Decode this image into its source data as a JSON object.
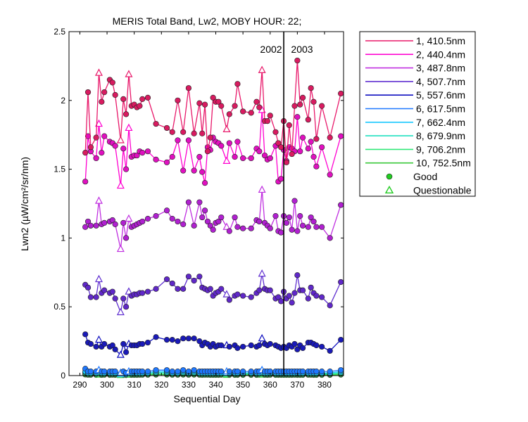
{
  "chart_data": {
    "type": "line",
    "title": "MERIS Total Band, Lw2, MOBY HOUR: 22;",
    "xlabel": "Sequential Day",
    "ylabel": "Lwn2 (µW/cm²/sr/nm)",
    "xlim": [
      286,
      387
    ],
    "ylim": [
      0,
      2.5
    ],
    "xticks": [
      290,
      300,
      310,
      320,
      330,
      340,
      350,
      360,
      370,
      380
    ],
    "yticks": [
      0,
      0.5,
      1,
      1.5,
      2,
      2.5
    ],
    "ytick_labels": [
      "0",
      "0.5",
      "1",
      "1.5",
      "2",
      "2.5"
    ],
    "year_divider": {
      "x": 365,
      "left_label": "2002",
      "right_label": "2003"
    },
    "x": [
      292,
      293,
      294,
      296,
      297,
      298,
      299,
      301,
      302,
      303,
      305,
      306,
      307,
      308,
      309,
      310,
      311,
      312,
      313,
      315,
      318,
      322,
      324,
      326,
      328,
      330,
      332,
      334,
      335,
      336,
      337,
      338,
      339,
      340,
      341,
      342,
      344,
      345,
      347,
      348,
      350,
      353,
      355,
      356,
      357,
      358,
      359,
      360,
      362,
      363,
      364,
      365,
      366,
      367,
      368,
      369,
      370,
      371,
      372,
      374,
      375,
      376,
      377,
      379,
      382,
      386
    ],
    "questionable_x": [
      297,
      305,
      308,
      344,
      357
    ],
    "series": [
      {
        "name": "1, 410.5nm",
        "color": "#e8186a",
        "marker_fill": "#d81b60",
        "values": [
          1.62,
          2.06,
          1.66,
          1.73,
          2.2,
          1.99,
          2.06,
          2.15,
          2.13,
          2.04,
          1.71,
          2.01,
          1.9,
          2.19,
          1.96,
          1.97,
          1.95,
          1.96,
          2.01,
          2.02,
          1.83,
          1.8,
          1.77,
          2.0,
          1.77,
          2.09,
          1.76,
          1.98,
          1.76,
          1.97,
          1.63,
          1.73,
          2.02,
          1.99,
          1.99,
          1.96,
          1.79,
          1.9,
          1.96,
          2.12,
          1.92,
          1.91,
          1.99,
          1.95,
          2.22,
          1.85,
          1.85,
          1.89,
          1.77,
          1.69,
          1.66,
          1.85,
          1.55,
          1.82,
          1.61,
          1.96,
          2.29,
          1.97,
          2.02,
          1.86,
          2.09,
          1.99,
          1.72,
          1.96,
          1.73,
          2.05
        ]
      },
      {
        "name": "2, 440.4nm",
        "color": "#ff00d0",
        "marker_fill": "#e010c0",
        "values": [
          1.41,
          1.74,
          1.63,
          1.58,
          1.83,
          1.62,
          1.74,
          1.7,
          1.69,
          1.67,
          1.38,
          1.65,
          1.5,
          1.8,
          1.59,
          1.6,
          1.6,
          1.63,
          1.62,
          1.63,
          1.57,
          1.55,
          1.59,
          1.71,
          1.49,
          1.71,
          1.49,
          1.59,
          1.48,
          1.4,
          1.66,
          1.64,
          1.73,
          1.7,
          1.69,
          1.67,
          1.56,
          1.69,
          1.59,
          1.7,
          1.58,
          1.58,
          1.65,
          1.63,
          1.93,
          1.6,
          1.57,
          1.58,
          1.67,
          1.41,
          1.43,
          1.64,
          1.56,
          1.66,
          1.65,
          1.63,
          1.88,
          1.63,
          1.73,
          1.65,
          1.7,
          1.59,
          1.52,
          1.66,
          1.46,
          1.74
        ]
      },
      {
        "name": "3, 487.8nm",
        "color": "#c030e0",
        "marker_fill": "#b020d0",
        "values": [
          1.08,
          1.12,
          1.09,
          1.09,
          1.27,
          1.1,
          1.11,
          1.12,
          1.13,
          1.1,
          0.92,
          1.11,
          1.0,
          1.14,
          1.08,
          1.09,
          1.1,
          1.11,
          1.12,
          1.14,
          1.16,
          1.2,
          1.14,
          1.12,
          1.1,
          1.26,
          1.09,
          1.26,
          1.15,
          1.2,
          1.12,
          1.09,
          1.06,
          1.11,
          1.12,
          1.15,
          1.08,
          1.05,
          1.15,
          1.08,
          1.07,
          1.07,
          1.13,
          1.12,
          1.35,
          1.11,
          1.09,
          1.07,
          1.16,
          1.05,
          1.04,
          1.16,
          1.11,
          1.15,
          1.06,
          1.27,
          1.05,
          1.16,
          1.09,
          1.08,
          1.15,
          1.12,
          1.08,
          1.08,
          1.0,
          1.24
        ]
      },
      {
        "name": "4, 507.7nm",
        "color": "#6030d0",
        "marker_fill": "#6028c8",
        "values": [
          0.66,
          0.64,
          0.57,
          0.57,
          0.7,
          0.6,
          0.62,
          0.6,
          0.61,
          0.56,
          0.46,
          0.56,
          0.5,
          0.61,
          0.58,
          0.59,
          0.59,
          0.6,
          0.6,
          0.61,
          0.63,
          0.7,
          0.67,
          0.63,
          0.63,
          0.72,
          0.69,
          0.72,
          0.64,
          0.63,
          0.62,
          0.63,
          0.58,
          0.6,
          0.61,
          0.63,
          0.59,
          0.55,
          0.58,
          0.59,
          0.58,
          0.57,
          0.6,
          0.62,
          0.74,
          0.63,
          0.62,
          0.62,
          0.56,
          0.57,
          0.54,
          0.61,
          0.56,
          0.58,
          0.53,
          0.6,
          0.73,
          0.62,
          0.62,
          0.56,
          0.64,
          0.6,
          0.58,
          0.57,
          0.51,
          0.68
        ]
      },
      {
        "name": "5, 557.6nm",
        "color": "#1010c0",
        "marker_fill": "#1a1ab8",
        "values": [
          0.3,
          0.24,
          0.23,
          0.21,
          0.26,
          0.21,
          0.23,
          0.21,
          0.22,
          0.19,
          0.15,
          0.23,
          0.17,
          0.23,
          0.22,
          0.22,
          0.22,
          0.23,
          0.23,
          0.24,
          0.28,
          0.26,
          0.26,
          0.25,
          0.27,
          0.27,
          0.27,
          0.25,
          0.22,
          0.24,
          0.23,
          0.21,
          0.23,
          0.21,
          0.22,
          0.22,
          0.22,
          0.21,
          0.22,
          0.2,
          0.21,
          0.22,
          0.21,
          0.22,
          0.27,
          0.23,
          0.22,
          0.23,
          0.22,
          0.21,
          0.2,
          0.21,
          0.2,
          0.22,
          0.21,
          0.23,
          0.19,
          0.22,
          0.2,
          0.24,
          0.24,
          0.23,
          0.22,
          0.21,
          0.18,
          0.26
        ]
      },
      {
        "name": "6, 617.5nm",
        "color": "#1e78ff",
        "marker_fill": "#1e78ff",
        "values": [
          0.05,
          0.03,
          0.03,
          0.03,
          0.04,
          0.03,
          0.03,
          0.03,
          0.03,
          0.03,
          0.02,
          0.03,
          0.02,
          0.03,
          0.03,
          0.03,
          0.03,
          0.03,
          0.03,
          0.03,
          0.04,
          0.04,
          0.03,
          0.03,
          0.04,
          0.03,
          0.04,
          0.03,
          0.03,
          0.03,
          0.03,
          0.03,
          0.03,
          0.03,
          0.03,
          0.03,
          0.03,
          0.03,
          0.03,
          0.03,
          0.03,
          0.03,
          0.03,
          0.03,
          0.04,
          0.03,
          0.03,
          0.03,
          0.03,
          0.03,
          0.03,
          0.03,
          0.03,
          0.03,
          0.03,
          0.03,
          0.03,
          0.03,
          0.03,
          0.03,
          0.03,
          0.03,
          0.03,
          0.03,
          0.03,
          0.04
        ]
      },
      {
        "name": "7, 662.4nm",
        "color": "#18c8ff",
        "marker_fill": "#18c8ff",
        "values": [
          0.03,
          0.02,
          0.02,
          0.02,
          0.03,
          0.02,
          0.02,
          0.02,
          0.02,
          0.02,
          0.01,
          0.02,
          0.01,
          0.02,
          0.02,
          0.02,
          0.02,
          0.02,
          0.02,
          0.02,
          0.03,
          0.03,
          0.02,
          0.02,
          0.03,
          0.02,
          0.03,
          0.02,
          0.02,
          0.02,
          0.02,
          0.02,
          0.02,
          0.02,
          0.02,
          0.02,
          0.02,
          0.02,
          0.02,
          0.02,
          0.02,
          0.02,
          0.02,
          0.02,
          0.03,
          0.02,
          0.02,
          0.02,
          0.02,
          0.02,
          0.02,
          0.02,
          0.02,
          0.02,
          0.02,
          0.02,
          0.02,
          0.02,
          0.02,
          0.02,
          0.02,
          0.02,
          0.02,
          0.02,
          0.02,
          0.03
        ]
      },
      {
        "name": "8, 679.9nm",
        "color": "#20e0c0",
        "marker_fill": "#20e0c0",
        "values": [
          0.025,
          0.018,
          0.018,
          0.017,
          0.024,
          0.017,
          0.018,
          0.017,
          0.018,
          0.016,
          0.012,
          0.017,
          0.013,
          0.018,
          0.017,
          0.017,
          0.017,
          0.018,
          0.018,
          0.018,
          0.022,
          0.022,
          0.019,
          0.019,
          0.021,
          0.019,
          0.021,
          0.019,
          0.017,
          0.018,
          0.018,
          0.017,
          0.017,
          0.017,
          0.017,
          0.018,
          0.017,
          0.016,
          0.017,
          0.016,
          0.017,
          0.017,
          0.017,
          0.018,
          0.024,
          0.018,
          0.017,
          0.018,
          0.017,
          0.016,
          0.016,
          0.017,
          0.016,
          0.017,
          0.016,
          0.018,
          0.016,
          0.017,
          0.017,
          0.018,
          0.018,
          0.017,
          0.017,
          0.017,
          0.015,
          0.021
        ]
      },
      {
        "name": "9, 706.2nm",
        "color": "#30e878",
        "marker_fill": "#30e878",
        "values": [
          0.015,
          0.011,
          0.011,
          0.01,
          0.014,
          0.01,
          0.011,
          0.01,
          0.011,
          0.01,
          0.008,
          0.01,
          0.008,
          0.011,
          0.01,
          0.01,
          0.01,
          0.011,
          0.011,
          0.011,
          0.013,
          0.013,
          0.011,
          0.011,
          0.013,
          0.011,
          0.013,
          0.011,
          0.01,
          0.011,
          0.011,
          0.01,
          0.01,
          0.01,
          0.01,
          0.011,
          0.01,
          0.01,
          0.01,
          0.01,
          0.01,
          0.01,
          0.01,
          0.011,
          0.014,
          0.011,
          0.01,
          0.011,
          0.01,
          0.01,
          0.01,
          0.01,
          0.01,
          0.01,
          0.01,
          0.011,
          0.01,
          0.01,
          0.01,
          0.011,
          0.011,
          0.01,
          0.01,
          0.01,
          0.009,
          0.013
        ]
      },
      {
        "name": "10, 752.5nm",
        "color": "#38c838",
        "marker_fill": "#38c838",
        "values": [
          0.008,
          0.006,
          0.006,
          0.005,
          0.007,
          0.005,
          0.006,
          0.005,
          0.006,
          0.005,
          0.004,
          0.005,
          0.004,
          0.006,
          0.005,
          0.005,
          0.005,
          0.006,
          0.006,
          0.006,
          0.007,
          0.007,
          0.006,
          0.006,
          0.007,
          0.006,
          0.007,
          0.006,
          0.005,
          0.006,
          0.006,
          0.005,
          0.005,
          0.005,
          0.005,
          0.006,
          0.005,
          0.005,
          0.005,
          0.005,
          0.005,
          0.005,
          0.005,
          0.006,
          0.007,
          0.006,
          0.005,
          0.006,
          0.005,
          0.005,
          0.005,
          0.005,
          0.005,
          0.005,
          0.005,
          0.006,
          0.005,
          0.005,
          0.005,
          0.006,
          0.006,
          0.005,
          0.005,
          0.005,
          0.005,
          0.007
        ]
      }
    ],
    "legend": {
      "position": "outside-right",
      "marker_entries": [
        {
          "label": "Good",
          "marker": "circle",
          "color": "#22cc22"
        },
        {
          "label": "Questionable",
          "marker": "triangle",
          "color": "#22cc22"
        }
      ]
    }
  }
}
